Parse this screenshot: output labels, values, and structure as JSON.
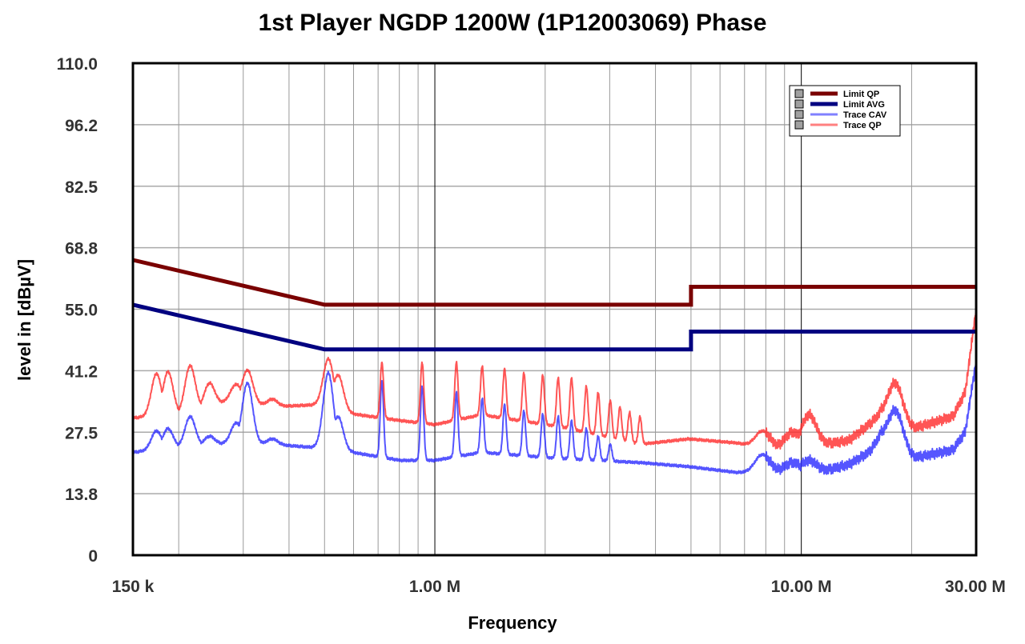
{
  "chart_data": {
    "type": "line",
    "title": "1st Player NGDP 1200W (1P12003069) Phase",
    "xlabel": "Frequency",
    "ylabel": "level in [dBµV]",
    "xscale": "log",
    "xlim_mhz": [
      0.15,
      30
    ],
    "ylim": [
      0,
      110
    ],
    "grid": true,
    "legend_position": "top-right",
    "y_ticks": [
      "0",
      "13.8",
      "27.5",
      "41.2",
      "55.0",
      "68.8",
      "82.5",
      "96.2",
      "110.0"
    ],
    "y_tick_values": [
      0,
      13.75,
      27.5,
      41.25,
      55,
      68.75,
      82.5,
      96.25,
      110
    ],
    "x_ticks": [
      {
        "label": "150 k",
        "mhz": 0.15
      },
      {
        "label": "1.00 M",
        "mhz": 1
      },
      {
        "label": "10.00 M",
        "mhz": 10
      },
      {
        "label": "30.00 M",
        "mhz": 30
      }
    ],
    "series": [
      {
        "name": "Limit QP",
        "color": "#7a0000",
        "style": "thick",
        "points": [
          [
            0.15,
            66
          ],
          [
            0.5,
            56
          ],
          [
            5,
            56
          ],
          [
            5,
            60
          ],
          [
            30,
            60
          ]
        ]
      },
      {
        "name": "Limit AVG",
        "color": "#000080",
        "style": "thick",
        "points": [
          [
            0.15,
            56
          ],
          [
            0.5,
            46
          ],
          [
            5,
            46
          ],
          [
            5,
            50
          ],
          [
            30,
            50
          ]
        ]
      },
      {
        "name": "Trace CAV",
        "color": "#2a2aff",
        "style": "trace",
        "baseline": [
          [
            0.15,
            23.0
          ],
          [
            0.2,
            24.2
          ],
          [
            0.3,
            25.3
          ],
          [
            0.499,
            23.9
          ],
          [
            0.595,
            23.0
          ],
          [
            0.805,
            21.2
          ],
          [
            1.0,
            21.2
          ],
          [
            1.34,
            23.0
          ],
          [
            2.2,
            21.6
          ],
          [
            3.64,
            20.7
          ],
          [
            4.93,
            19.8
          ],
          [
            6.66,
            18.5
          ],
          [
            7.56,
            18.5
          ],
          [
            8.57,
            18.9
          ],
          [
            11.6,
            18.9
          ],
          [
            13.5,
            20.3
          ],
          [
            15.3,
            23.0
          ],
          [
            16.5,
            26.6
          ],
          [
            20.2,
            21.8
          ],
          [
            21.3,
            22.1
          ],
          [
            25.9,
            23.5
          ],
          [
            28.0,
            27.5
          ],
          [
            30,
            43.5
          ]
        ],
        "peaks": [
          [
            0.174,
            27.8
          ],
          [
            0.187,
            28.3
          ],
          [
            0.215,
            31.0
          ],
          [
            0.243,
            26.6
          ],
          [
            0.287,
            29.6
          ],
          [
            0.308,
            38.5
          ],
          [
            0.36,
            26.0
          ],
          [
            0.512,
            40.8
          ],
          [
            0.544,
            31.0
          ],
          [
            0.717,
            39.0
          ],
          [
            0.923,
            37.8
          ],
          [
            1.145,
            36.4
          ],
          [
            1.346,
            35.1
          ],
          [
            1.55,
            33.7
          ],
          [
            1.75,
            32.3
          ],
          [
            1.97,
            31.6
          ],
          [
            2.17,
            31.0
          ],
          [
            2.36,
            30.1
          ],
          [
            2.59,
            28.3
          ],
          [
            2.79,
            26.6
          ],
          [
            3.01,
            24.8
          ],
          [
            7.83,
            22.5
          ],
          [
            9.48,
            20.7
          ],
          [
            10.5,
            21.2
          ],
          [
            18.0,
            32.4
          ]
        ]
      },
      {
        "name": "Trace QP",
        "color": "#ff2a2a",
        "style": "trace",
        "baseline": [
          [
            0.15,
            30.7
          ],
          [
            0.2,
            31.5
          ],
          [
            0.287,
            35.0
          ],
          [
            0.36,
            33.2
          ],
          [
            0.499,
            33.7
          ],
          [
            0.595,
            31.6
          ],
          [
            0.805,
            30.1
          ],
          [
            1.0,
            29.2
          ],
          [
            1.34,
            31.4
          ],
          [
            2.2,
            28.7
          ],
          [
            3.64,
            24.8
          ],
          [
            4.93,
            26.0
          ],
          [
            6.66,
            25.1
          ],
          [
            7.56,
            24.2
          ],
          [
            8.57,
            24.2
          ],
          [
            11.6,
            24.8
          ],
          [
            13.5,
            25.7
          ],
          [
            15.3,
            29.2
          ],
          [
            16.5,
            31.4
          ],
          [
            20.2,
            28.3
          ],
          [
            21.3,
            28.9
          ],
          [
            25.9,
            31.0
          ],
          [
            28.0,
            36.4
          ],
          [
            30,
            55.1
          ]
        ],
        "peaks": [
          [
            0.174,
            40.6
          ],
          [
            0.187,
            41.0
          ],
          [
            0.215,
            42.4
          ],
          [
            0.243,
            38.5
          ],
          [
            0.287,
            38.2
          ],
          [
            0.308,
            41.4
          ],
          [
            0.36,
            34.9
          ],
          [
            0.512,
            43.9
          ],
          [
            0.544,
            40.3
          ],
          [
            0.717,
            43.1
          ],
          [
            0.923,
            43.1
          ],
          [
            1.145,
            43.1
          ],
          [
            1.346,
            42.3
          ],
          [
            1.55,
            41.7
          ],
          [
            1.75,
            40.8
          ],
          [
            1.97,
            40.3
          ],
          [
            2.17,
            39.6
          ],
          [
            2.36,
            39.6
          ],
          [
            2.59,
            37.8
          ],
          [
            2.79,
            36.4
          ],
          [
            3.01,
            34.6
          ],
          [
            3.2,
            33.2
          ],
          [
            3.4,
            31.9
          ],
          [
            3.63,
            31.0
          ],
          [
            7.83,
            27.8
          ],
          [
            9.48,
            27.5
          ],
          [
            10.5,
            31.4
          ],
          [
            18.0,
            38.5
          ]
        ]
      }
    ]
  }
}
